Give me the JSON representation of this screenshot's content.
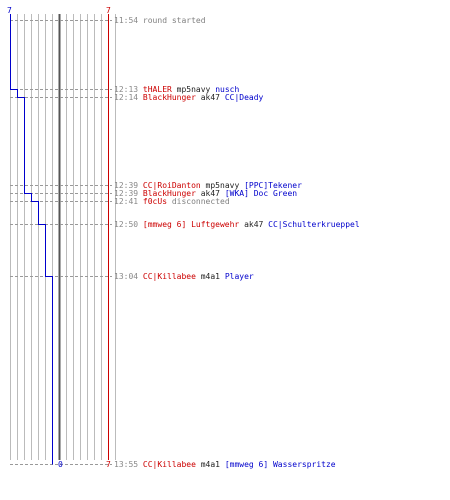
{
  "score": {
    "blue_start": "7",
    "red_start": "7",
    "blue_end": "0",
    "red_end": "7"
  },
  "events": [
    {
      "time": "11:54",
      "parts": [
        {
          "text": "round started",
          "cls": "grey"
        }
      ]
    },
    {
      "time": "12:13",
      "parts": [
        {
          "text": "tHALER",
          "cls": "red"
        },
        {
          "text": "mp5navy",
          "cls": "blk"
        },
        {
          "text": "nusch",
          "cls": "blue"
        }
      ]
    },
    {
      "time": "12:14",
      "parts": [
        {
          "text": "BlackHunger",
          "cls": "red"
        },
        {
          "text": "ak47",
          "cls": "blk"
        },
        {
          "text": "CC|Deady",
          "cls": "blue"
        }
      ]
    },
    {
      "time": "12:39",
      "parts": [
        {
          "text": "CC|RoiDanton",
          "cls": "red"
        },
        {
          "text": "mp5navy",
          "cls": "blk"
        },
        {
          "text": "[PPC]Tekener",
          "cls": "blue"
        }
      ]
    },
    {
      "time": "12:39",
      "parts": [
        {
          "text": "BlackHunger",
          "cls": "red"
        },
        {
          "text": "ak47",
          "cls": "blk"
        },
        {
          "text": "[WKA] Doc Green",
          "cls": "blue"
        }
      ]
    },
    {
      "time": "12:41",
      "parts": [
        {
          "text": "f0cUs",
          "cls": "red"
        },
        {
          "text": "disconnected",
          "cls": "grey"
        }
      ]
    },
    {
      "time": "12:50",
      "parts": [
        {
          "text": "[mmweg 6] Luftgewehr",
          "cls": "red"
        },
        {
          "text": "ak47",
          "cls": "blk"
        },
        {
          "text": "CC|Schulterkrueppel",
          "cls": "blue"
        }
      ]
    },
    {
      "time": "13:04",
      "parts": [
        {
          "text": "CC|Killabee",
          "cls": "red"
        },
        {
          "text": "m4a1",
          "cls": "blk"
        },
        {
          "text": "Player",
          "cls": "blue"
        }
      ]
    },
    {
      "time": "13:55",
      "parts": [
        {
          "text": "CC|Killabee",
          "cls": "red"
        },
        {
          "text": "m4a1",
          "cls": "blk"
        },
        {
          "text": "[mmweg 6] Wasserspritze",
          "cls": "blue"
        }
      ]
    }
  ],
  "colors": {
    "blue_team": "#0000cc",
    "red_team": "#cc0000",
    "grid": "#bbbbbb",
    "center": "#555555"
  }
}
